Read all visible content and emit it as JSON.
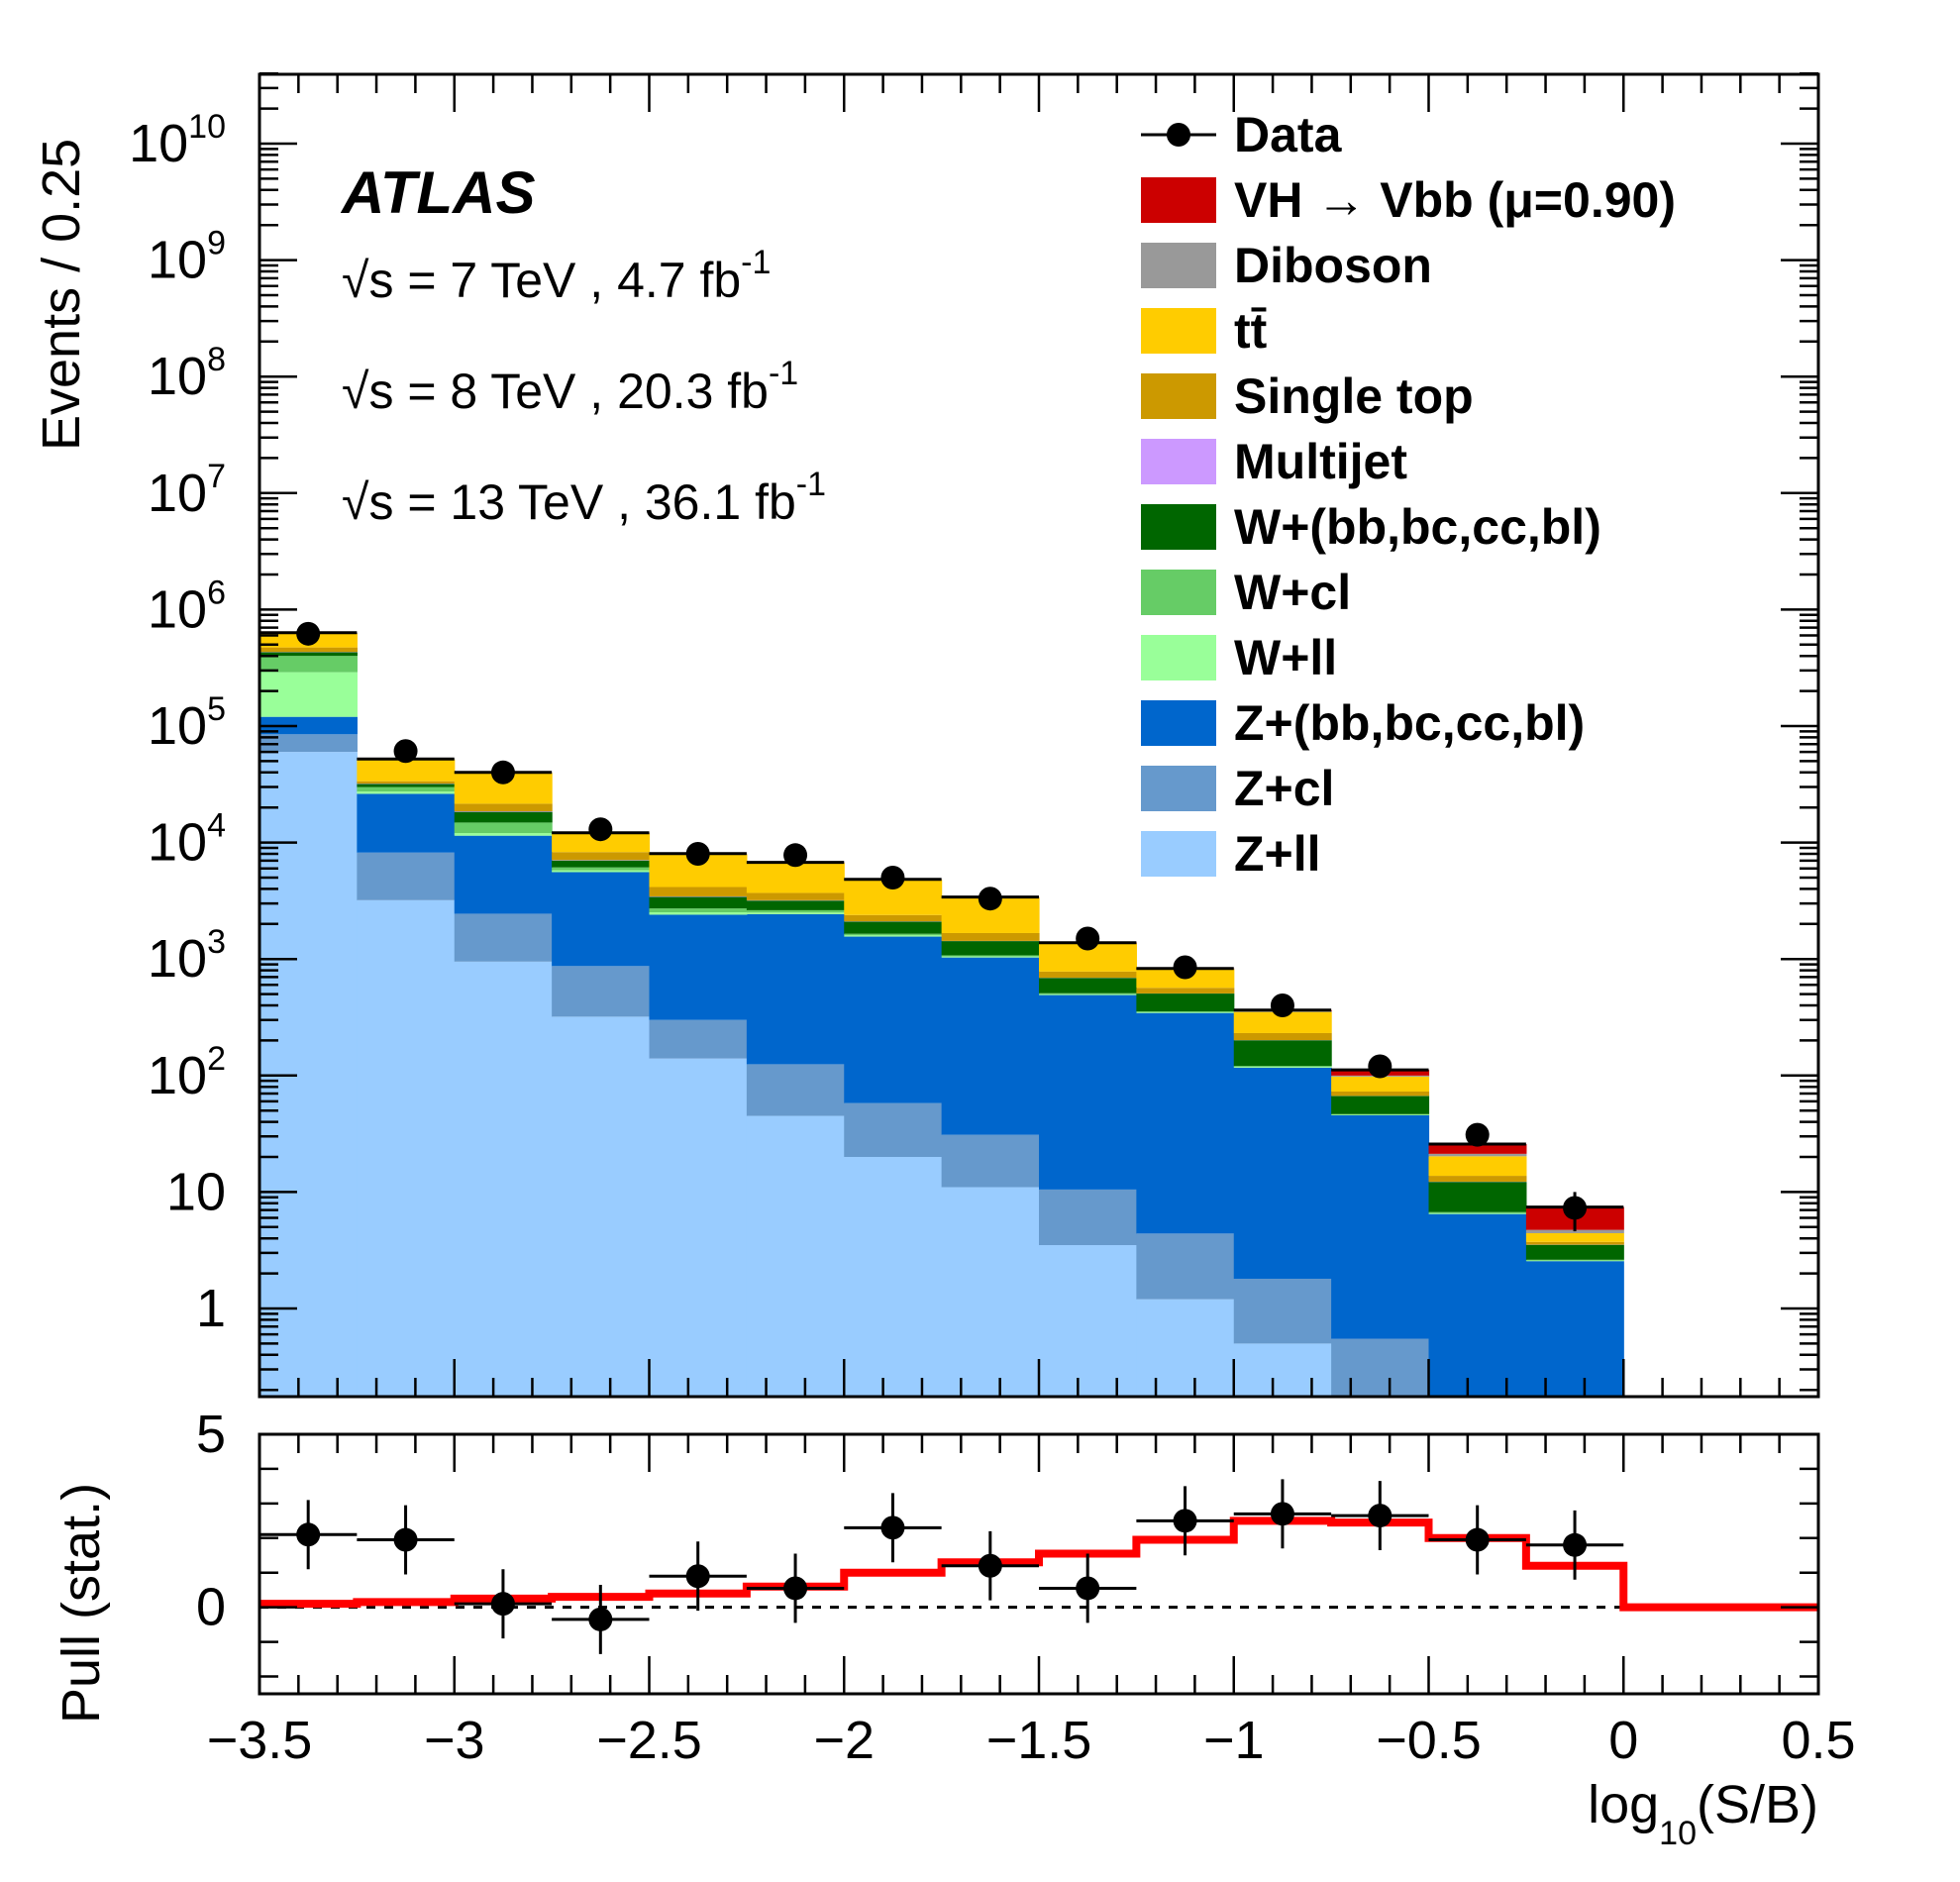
{
  "chart_data": [
    {
      "type": "stacked-histogram-log",
      "ylabel": "Events / 0.25",
      "ylim": [
        0.2,
        40000000000
      ],
      "xlim": [
        -3.5,
        0.5
      ],
      "bin_edges": [
        -3.5,
        -3.25,
        -3.0,
        -2.75,
        -2.5,
        -2.25,
        -2.0,
        -1.75,
        -1.5,
        -1.25,
        -1.0,
        -0.75,
        -0.5,
        -0.25,
        0.0
      ],
      "y_tick_labels": [
        {
          "value": 1,
          "base": "1",
          "exp": ""
        },
        {
          "value": 10,
          "base": "10",
          "exp": ""
        },
        {
          "value": 100,
          "base": "10",
          "exp": "2"
        },
        {
          "value": 1000,
          "base": "10",
          "exp": "3"
        },
        {
          "value": 10000,
          "base": "10",
          "exp": "4"
        },
        {
          "value": 100000,
          "base": "10",
          "exp": "5"
        },
        {
          "value": 1000000,
          "base": "10",
          "exp": "6"
        },
        {
          "value": 10000000,
          "base": "10",
          "exp": "7"
        },
        {
          "value": 100000000,
          "base": "10",
          "exp": "8"
        },
        {
          "value": 1000000000,
          "base": "10",
          "exp": "9"
        },
        {
          "value": 10000000000,
          "base": "10",
          "exp": "10"
        }
      ],
      "series": [
        {
          "name": "Z+ll",
          "color": "#99ccff",
          "values": [
            60000,
            3200,
            950,
            320,
            140,
            45,
            20,
            11,
            3.5,
            1.2,
            0.5,
            0.1,
            0.05,
            0.02
          ]
        },
        {
          "name": "Z+cl",
          "color": "#6699cc",
          "values": [
            25000,
            5000,
            1500,
            550,
            160,
            80,
            38,
            20,
            7,
            3.2,
            1.3,
            0.45,
            0.12,
            0.03
          ]
        },
        {
          "name": "Z+(bb,bc,cc,bl)",
          "color": "#0066cc",
          "values": [
            35000,
            18000,
            9000,
            4700,
            2100,
            2300,
            1500,
            1000,
            480,
            340,
            115,
            45,
            6.3,
            2.5
          ]
        },
        {
          "name": "W+ll",
          "color": "#99ff99",
          "values": [
            170000,
            1200,
            600,
            200,
            120,
            80,
            40,
            20,
            8,
            5,
            2,
            0.5,
            0.1,
            0.03
          ]
        },
        {
          "name": "W+cl",
          "color": "#66cc66",
          "values": [
            110000,
            2500,
            2800,
            350,
            200,
            120,
            50,
            25,
            10,
            6,
            2,
            0.6,
            0.15,
            0.04
          ]
        },
        {
          "name": "W+(bb,bc,cc,bl)",
          "color": "#006600",
          "values": [
            30000,
            2000,
            3500,
            900,
            700,
            550,
            450,
            350,
            180,
            150,
            80,
            20,
            5.5,
            0.9
          ]
        },
        {
          "name": "Multijet",
          "color": "#cc99ff",
          "values": [
            3000,
            200,
            200,
            60,
            30,
            20,
            10,
            5,
            2,
            1,
            0.5,
            0.2,
            0.05,
            0.01
          ]
        },
        {
          "name": "Single top",
          "color": "#cc9900",
          "values": [
            40000,
            1500,
            3000,
            1200,
            700,
            500,
            280,
            240,
            90,
            60,
            30,
            6,
            1.5,
            0.2
          ]
        },
        {
          "name": "tt̄",
          "color": "#ffcc00",
          "values": [
            150000,
            18000,
            18000,
            3700,
            3800,
            3000,
            2400,
            1700,
            580,
            250,
            120,
            25,
            6.5,
            0.7
          ]
        },
        {
          "name": "Diboson",
          "color": "#999999",
          "values": [
            10000,
            500,
            400,
            120,
            60,
            45,
            30,
            25,
            10,
            7,
            6,
            2,
            1.0,
            0.3
          ]
        },
        {
          "name": "VH → Vbb (μ=0.90)",
          "color": "#cc0000",
          "values": [
            700,
            80,
            80,
            30,
            20,
            15,
            12,
            10,
            10,
            6,
            7,
            12,
            4.5,
            2.7
          ]
        }
      ],
      "data_points": {
        "name": "Data",
        "x": [
          -3.375,
          -3.125,
          -2.875,
          -2.625,
          -2.375,
          -2.125,
          -1.875,
          -1.625,
          -1.375,
          -1.125,
          -0.875,
          -0.625,
          -0.375,
          -0.125
        ],
        "y": [
          620000,
          61000,
          40000,
          13000,
          8000,
          7800,
          5000,
          3300,
          1500,
          850,
          400,
          120,
          31,
          7.3
        ],
        "yerr": [
          800,
          250,
          200,
          115,
          90,
          88,
          71,
          57,
          39,
          29,
          20,
          11,
          5.6,
          2.7
        ]
      }
    },
    {
      "type": "pull",
      "ylabel": "Pull (stat.)",
      "xlabel_main": "log",
      "xlabel_sub": "10",
      "xlabel_rest": "(S/B)",
      "ylim": [
        -2.5,
        5.0
      ],
      "y_tick_labels": [
        {
          "value": 0,
          "label": "0"
        },
        {
          "value": 5,
          "label": "5"
        }
      ],
      "x_tick_labels": [
        {
          "value": -3.5,
          "label": "−3.5"
        },
        {
          "value": -3.0,
          "label": "−3"
        },
        {
          "value": -2.5,
          "label": "−2.5"
        },
        {
          "value": -2.0,
          "label": "−2"
        },
        {
          "value": -1.5,
          "label": "−1.5"
        },
        {
          "value": -1.0,
          "label": "−1"
        },
        {
          "value": -0.5,
          "label": "−0.5"
        },
        {
          "value": 0.0,
          "label": "0"
        },
        {
          "value": 0.5,
          "label": "0.5"
        }
      ],
      "data_points": {
        "x": [
          -3.375,
          -3.125,
          -2.875,
          -2.625,
          -2.375,
          -2.125,
          -1.875,
          -1.625,
          -1.375,
          -1.125,
          -0.875,
          -0.625,
          -0.375,
          -0.125
        ],
        "y": [
          2.1,
          1.95,
          0.1,
          -0.35,
          0.9,
          0.55,
          2.3,
          1.2,
          0.55,
          2.5,
          2.7,
          2.65,
          1.95,
          1.8
        ],
        "yerr": [
          1.0,
          1.0,
          1.0,
          1.0,
          1.0,
          1.0,
          1.0,
          1.0,
          1.0,
          1.0,
          1.0,
          1.0,
          1.0,
          1.0
        ]
      },
      "signal_line": {
        "color": "#ff0000",
        "bin_edges": [
          -3.5,
          -3.25,
          -3.0,
          -2.75,
          -2.5,
          -2.25,
          -2.0,
          -1.75,
          -1.5,
          -1.25,
          -1.0,
          -0.75,
          -0.5,
          -0.25,
          0.0,
          0.5
        ],
        "values": [
          0.1,
          0.15,
          0.25,
          0.3,
          0.4,
          0.6,
          1.0,
          1.3,
          1.55,
          1.95,
          2.5,
          2.45,
          2.0,
          1.2,
          0.0
        ]
      }
    }
  ],
  "labels": {
    "atlas": "ATLAS",
    "energy_lines": [
      {
        "sqrt": "√s",
        "text": " = 7 TeV , 4.7 fb",
        "sup": "-1"
      },
      {
        "sqrt": "√s",
        "text": " = 8 TeV , 20.3 fb",
        "sup": "-1"
      },
      {
        "sqrt": "√s",
        "text": " = 13 TeV , 36.1 fb",
        "sup": "-1"
      }
    ]
  },
  "legend": [
    {
      "label": "Data",
      "marker": "point"
    },
    {
      "label": "VH → Vbb (μ=0.90)",
      "color": "#cc0000"
    },
    {
      "label": "Diboson",
      "color": "#999999"
    },
    {
      "label": "tt̄",
      "color": "#ffcc00"
    },
    {
      "label": "Single top",
      "color": "#cc9900"
    },
    {
      "label": "Multijet",
      "color": "#cc99ff"
    },
    {
      "label": "W+(bb,bc,cc,bl)",
      "color": "#006600"
    },
    {
      "label": "W+cl",
      "color": "#66cc66"
    },
    {
      "label": "W+ll",
      "color": "#99ff99"
    },
    {
      "label": "Z+(bb,bc,cc,bl)",
      "color": "#0066cc"
    },
    {
      "label": "Z+cl",
      "color": "#6699cc"
    },
    {
      "label": "Z+ll",
      "color": "#99ccff"
    }
  ]
}
